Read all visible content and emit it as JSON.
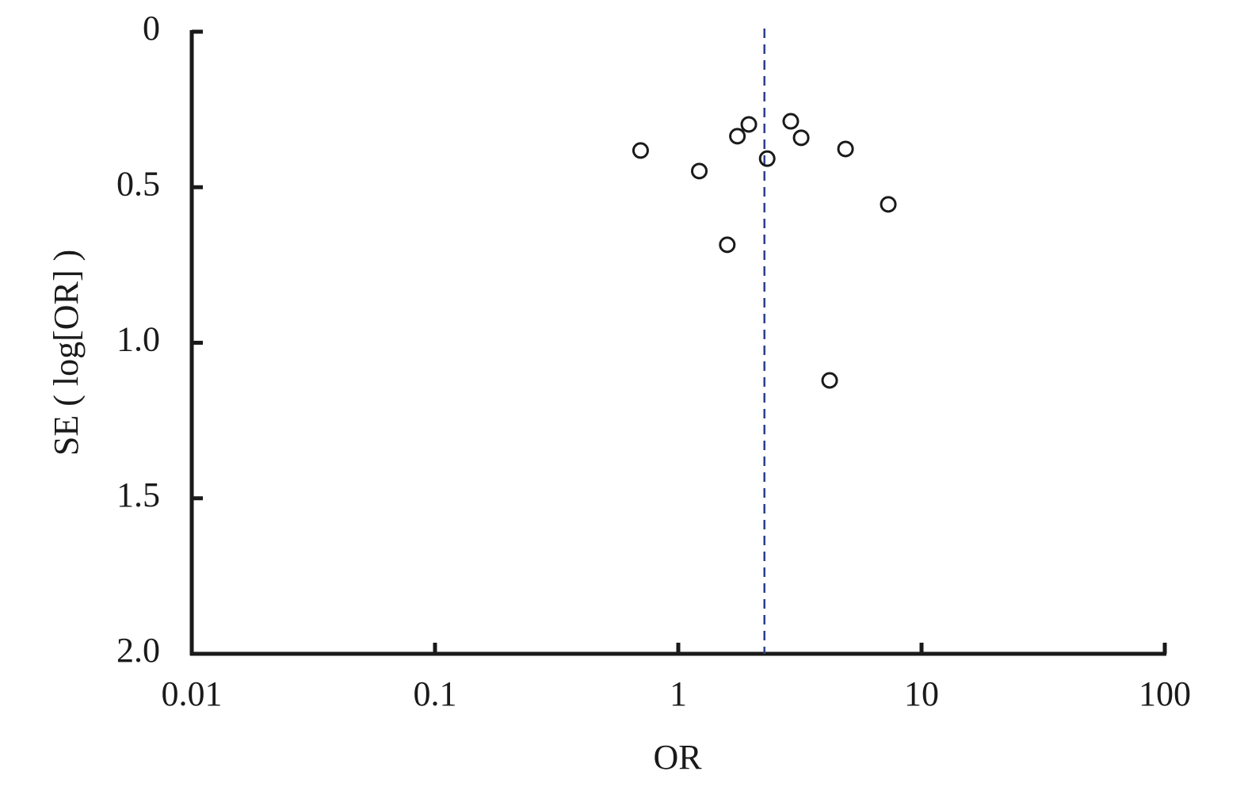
{
  "chart_data": {
    "type": "scatter",
    "x_label": "OR",
    "y_label": "SE ( log[OR] )",
    "x": [
      0.7,
      1.22,
      1.59,
      1.75,
      1.95,
      2.32,
      2.9,
      3.2,
      4.87,
      7.3,
      4.19
    ],
    "values": [
      0.382,
      0.448,
      0.685,
      0.336,
      0.298,
      0.408,
      0.288,
      0.341,
      0.377,
      0.555,
      1.121
    ],
    "color": "#1a1a1a",
    "pooled_or": 2.26,
    "pooled_color": "#2b3f8c",
    "x_log": true,
    "y_inverted": true,
    "xlim": [
      0.01,
      100
    ],
    "xticks": [
      0.01,
      0.1,
      1,
      10,
      100
    ],
    "ylim": [
      0,
      2
    ],
    "yticks": [
      0,
      0.5,
      {
        "value": 1,
        "label": "1.0"
      },
      1.5,
      {
        "value": 2,
        "label": "2.0"
      }
    ]
  }
}
